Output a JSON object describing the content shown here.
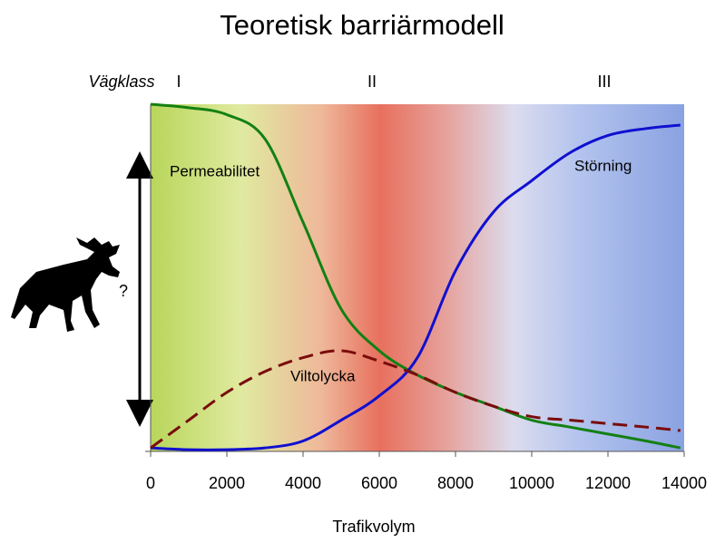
{
  "chart_data": {
    "type": "line",
    "title": "Teoretisk barriärmodell",
    "x_label": "Trafikvolym",
    "road_class_label": "Vägklass",
    "road_classes": [
      "I",
      "II",
      "III"
    ],
    "annotation": "?",
    "x": [
      0,
      1000,
      2000,
      3000,
      4000,
      5000,
      6000,
      7000,
      8000,
      9000,
      10000,
      11000,
      12000,
      13000,
      13900
    ],
    "series": [
      {
        "name": "Permeabilitet",
        "color": "#138013",
        "dashed": false,
        "values": [
          100,
          99,
          97,
          90,
          66,
          41,
          29,
          22,
          17,
          13,
          9,
          7,
          5,
          3,
          1
        ]
      },
      {
        "name": "Störning",
        "color": "#1010d0",
        "dashed": false,
        "values": [
          1,
          0.5,
          0.5,
          1,
          3,
          9,
          16,
          27,
          52,
          69,
          78,
          86,
          91,
          93,
          94
        ]
      },
      {
        "name": "Viltolycka",
        "color": "#7a0c0c",
        "dashed": true,
        "values": [
          1,
          9,
          17,
          23,
          27,
          29,
          26,
          22,
          17,
          13,
          10,
          9,
          8,
          7,
          6
        ]
      }
    ],
    "xlim": [
      0,
      14000
    ],
    "xticks": [
      0,
      2000,
      4000,
      6000,
      8000,
      10000,
      12000,
      14000
    ],
    "ylim": [
      0,
      100
    ]
  }
}
